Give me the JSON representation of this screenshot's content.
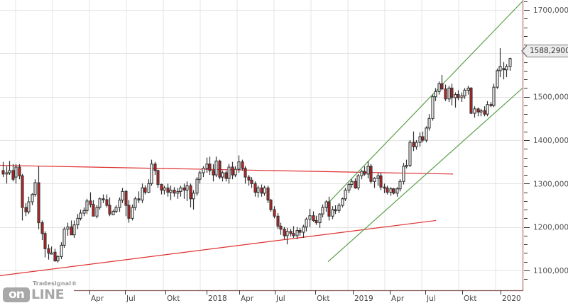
{
  "chart_data": {
    "type": "candlestick",
    "title": "",
    "instrument_last_price": "1588,2900",
    "ylim": [
      1075,
      1720
    ],
    "y_ticks": [
      "1100,0000",
      "1200,0000",
      "1300,0000",
      "1400,0000",
      "1500,0000",
      "1600,0000",
      "1700,0000"
    ],
    "y_tick_values": [
      1100,
      1200,
      1300,
      1400,
      1500,
      1600,
      1700
    ],
    "x_ticks": [
      {
        "label": "Apr",
        "x": 131
      },
      {
        "label": "Jul",
        "x": 181
      },
      {
        "label": "Okt",
        "x": 238
      },
      {
        "label": "2018",
        "x": 296
      },
      {
        "label": "Apr",
        "x": 342
      },
      {
        "label": "Jul",
        "x": 392
      },
      {
        "label": "Okt",
        "x": 449
      },
      {
        "label": "2019",
        "x": 502
      },
      {
        "label": "Apr",
        "x": 554
      },
      {
        "label": "Jul",
        "x": 604
      },
      {
        "label": "Okt",
        "x": 656
      },
      {
        "label": "2020",
        "x": 710
      }
    ],
    "grid": true,
    "colors": {
      "up": "#ffffff",
      "down": "#cc1f1f",
      "wick": "#333333",
      "trend_red": "#e03030",
      "trend_green": "#5aa04a",
      "grid": "#e4e4e4",
      "axis": "#c98a8a"
    },
    "trendlines": [
      {
        "name": "resistance",
        "color": "red",
        "from": [
          0,
          1342
        ],
        "to": [
          638,
          1322
        ]
      },
      {
        "name": "support",
        "color": "red",
        "from": [
          0,
          1088
        ],
        "to": [
          614,
          1215
        ]
      },
      {
        "name": "channel-upper",
        "color": "green",
        "from": [
          462,
          1255
        ],
        "to": [
          736,
          1720
        ]
      },
      {
        "name": "channel-lower",
        "color": "green",
        "from": [
          462,
          1120
        ],
        "to": [
          736,
          1520
        ]
      }
    ],
    "candles_ohlc": [
      [
        1330,
        1350,
        1315,
        1322
      ],
      [
        1322,
        1340,
        1300,
        1325
      ],
      [
        1325,
        1352,
        1320,
        1330
      ],
      [
        1330,
        1345,
        1305,
        1310
      ],
      [
        1315,
        1345,
        1300,
        1338
      ],
      [
        1338,
        1345,
        1310,
        1318
      ],
      [
        1318,
        1322,
        1215,
        1245
      ],
      [
        1245,
        1255,
        1225,
        1235
      ],
      [
        1235,
        1270,
        1230,
        1258
      ],
      [
        1258,
        1278,
        1250,
        1275
      ],
      [
        1275,
        1310,
        1270,
        1302
      ],
      [
        1302,
        1340,
        1195,
        1210
      ],
      [
        1210,
        1215,
        1170,
        1185
      ],
      [
        1185,
        1190,
        1130,
        1150
      ],
      [
        1150,
        1160,
        1125,
        1140
      ],
      [
        1140,
        1155,
        1140,
        1140
      ],
      [
        1142,
        1150,
        1120,
        1122
      ],
      [
        1122,
        1135,
        1118,
        1132
      ],
      [
        1132,
        1165,
        1126,
        1158
      ],
      [
        1158,
        1200,
        1152,
        1195
      ],
      [
        1195,
        1210,
        1180,
        1200
      ],
      [
        1200,
        1215,
        1190,
        1182
      ],
      [
        1182,
        1215,
        1175,
        1205
      ],
      [
        1205,
        1230,
        1195,
        1220
      ],
      [
        1220,
        1240,
        1215,
        1232
      ],
      [
        1232,
        1245,
        1225,
        1238
      ],
      [
        1238,
        1265,
        1230,
        1260
      ],
      [
        1260,
        1280,
        1245,
        1252
      ],
      [
        1252,
        1262,
        1225,
        1225
      ],
      [
        1225,
        1250,
        1220,
        1245
      ],
      [
        1245,
        1268,
        1240,
        1265
      ],
      [
        1265,
        1275,
        1255,
        1263
      ],
      [
        1263,
        1275,
        1245,
        1250
      ],
      [
        1250,
        1268,
        1225,
        1230
      ],
      [
        1228,
        1240,
        1230,
        1236
      ],
      [
        1236,
        1250,
        1232,
        1245
      ],
      [
        1245,
        1268,
        1235,
        1262
      ],
      [
        1262,
        1290,
        1255,
        1282
      ],
      [
        1282,
        1285,
        1225,
        1250
      ],
      [
        1250,
        1262,
        1210,
        1220
      ],
      [
        1220,
        1252,
        1215,
        1245
      ],
      [
        1245,
        1270,
        1238,
        1265
      ],
      [
        1265,
        1282,
        1255,
        1262
      ],
      [
        1262,
        1300,
        1255,
        1290
      ],
      [
        1290,
        1296,
        1275,
        1280
      ],
      [
        1280,
        1310,
        1278,
        1300
      ],
      [
        1300,
        1355,
        1295,
        1345
      ],
      [
        1345,
        1350,
        1320,
        1330
      ],
      [
        1330,
        1332,
        1290,
        1298
      ],
      [
        1298,
        1300,
        1275,
        1285
      ],
      [
        1285,
        1295,
        1275,
        1290
      ],
      [
        1290,
        1300,
        1270,
        1280
      ],
      [
        1280,
        1295,
        1262,
        1285
      ],
      [
        1285,
        1292,
        1270,
        1278
      ],
      [
        1278,
        1290,
        1265,
        1282
      ],
      [
        1282,
        1295,
        1270,
        1290
      ],
      [
        1290,
        1300,
        1265,
        1285
      ],
      [
        1285,
        1305,
        1260,
        1295
      ],
      [
        1295,
        1300,
        1245,
        1265
      ],
      [
        1265,
        1285,
        1240,
        1278
      ],
      [
        1278,
        1315,
        1272,
        1310
      ],
      [
        1310,
        1330,
        1300,
        1325
      ],
      [
        1325,
        1340,
        1315,
        1335
      ],
      [
        1335,
        1360,
        1325,
        1345
      ],
      [
        1345,
        1362,
        1320,
        1330
      ],
      [
        1330,
        1345,
        1305,
        1320
      ],
      [
        1320,
        1362,
        1315,
        1352
      ],
      [
        1352,
        1355,
        1310,
        1315
      ],
      [
        1315,
        1330,
        1305,
        1325
      ],
      [
        1325,
        1330,
        1305,
        1312
      ],
      [
        1312,
        1345,
        1300,
        1338
      ],
      [
        1338,
        1350,
        1310,
        1320
      ],
      [
        1320,
        1340,
        1315,
        1333
      ],
      [
        1333,
        1365,
        1325,
        1350
      ],
      [
        1350,
        1355,
        1330,
        1335
      ],
      [
        1335,
        1340,
        1300,
        1315
      ],
      [
        1315,
        1320,
        1295,
        1308
      ],
      [
        1308,
        1315,
        1290,
        1300
      ],
      [
        1300,
        1305,
        1270,
        1280
      ],
      [
        1280,
        1295,
        1268,
        1290
      ],
      [
        1290,
        1298,
        1270,
        1278
      ],
      [
        1278,
        1295,
        1272,
        1290
      ],
      [
        1290,
        1295,
        1255,
        1262
      ],
      [
        1262,
        1265,
        1235,
        1240
      ],
      [
        1240,
        1248,
        1220,
        1225
      ],
      [
        1225,
        1232,
        1195,
        1202
      ],
      [
        1202,
        1210,
        1182,
        1195
      ],
      [
        1195,
        1200,
        1172,
        1180
      ],
      [
        1180,
        1198,
        1160,
        1190
      ],
      [
        1190,
        1196,
        1178,
        1185
      ],
      [
        1185,
        1202,
        1175,
        1180
      ],
      [
        1180,
        1200,
        1172,
        1192
      ],
      [
        1192,
        1198,
        1180,
        1188
      ],
      [
        1188,
        1205,
        1175,
        1200
      ],
      [
        1200,
        1222,
        1190,
        1218
      ],
      [
        1218,
        1242,
        1200,
        1226
      ],
      [
        1226,
        1236,
        1212,
        1215
      ],
      [
        1215,
        1226,
        1205,
        1210
      ],
      [
        1210,
        1232,
        1198,
        1230
      ],
      [
        1230,
        1252,
        1222,
        1245
      ],
      [
        1245,
        1262,
        1235,
        1258
      ],
      [
        1258,
        1270,
        1215,
        1225
      ],
      [
        1225,
        1248,
        1218,
        1240
      ],
      [
        1240,
        1250,
        1230,
        1238
      ],
      [
        1238,
        1255,
        1232,
        1250
      ],
      [
        1250,
        1268,
        1245,
        1265
      ],
      [
        1265,
        1290,
        1260,
        1285
      ],
      [
        1285,
        1302,
        1278,
        1298
      ],
      [
        1298,
        1310,
        1290,
        1305
      ],
      [
        1305,
        1312,
        1288,
        1290
      ],
      [
        1290,
        1322,
        1285,
        1318
      ],
      [
        1318,
        1332,
        1310,
        1328
      ],
      [
        1328,
        1340,
        1318,
        1322
      ],
      [
        1322,
        1352,
        1312,
        1340
      ],
      [
        1340,
        1345,
        1300,
        1305
      ],
      [
        1305,
        1315,
        1290,
        1312
      ],
      [
        1312,
        1325,
        1295,
        1318
      ],
      [
        1318,
        1325,
        1285,
        1292
      ],
      [
        1292,
        1300,
        1278,
        1290
      ],
      [
        1290,
        1295,
        1275,
        1280
      ],
      [
        1280,
        1292,
        1272,
        1288
      ],
      [
        1288,
        1290,
        1275,
        1278
      ],
      [
        1278,
        1292,
        1270,
        1288
      ],
      [
        1288,
        1310,
        1282,
        1305
      ],
      [
        1305,
        1348,
        1298,
        1340
      ],
      [
        1340,
        1355,
        1335,
        1342
      ],
      [
        1342,
        1400,
        1338,
        1395
      ],
      [
        1395,
        1420,
        1375,
        1385
      ],
      [
        1385,
        1400,
        1378,
        1395
      ],
      [
        1395,
        1418,
        1385,
        1408
      ],
      [
        1408,
        1420,
        1395,
        1400
      ],
      [
        1400,
        1432,
        1395,
        1428
      ],
      [
        1428,
        1460,
        1422,
        1450
      ],
      [
        1450,
        1505,
        1445,
        1500
      ],
      [
        1500,
        1520,
        1490,
        1512
      ],
      [
        1512,
        1535,
        1505,
        1530
      ],
      [
        1530,
        1550,
        1515,
        1518
      ],
      [
        1518,
        1528,
        1490,
        1495
      ],
      [
        1495,
        1525,
        1488,
        1520
      ],
      [
        1520,
        1530,
        1480,
        1498
      ],
      [
        1498,
        1510,
        1475,
        1505
      ],
      [
        1505,
        1515,
        1492,
        1498
      ],
      [
        1498,
        1510,
        1488,
        1502
      ],
      [
        1502,
        1520,
        1495,
        1515
      ],
      [
        1515,
        1525,
        1505,
        1520
      ],
      [
        1520,
        1522,
        1460,
        1462
      ],
      [
        1462,
        1478,
        1452,
        1472
      ],
      [
        1472,
        1475,
        1455,
        1465
      ],
      [
        1465,
        1472,
        1455,
        1468
      ],
      [
        1468,
        1478,
        1455,
        1460
      ],
      [
        1460,
        1490,
        1455,
        1482
      ],
      [
        1482,
        1488,
        1476,
        1480
      ],
      [
        1480,
        1530,
        1476,
        1522
      ],
      [
        1522,
        1565,
        1518,
        1560
      ],
      [
        1560,
        1612,
        1545,
        1570
      ],
      [
        1565,
        1580,
        1540,
        1562
      ],
      [
        1562,
        1575,
        1545,
        1570
      ],
      [
        1570,
        1590,
        1560,
        1588
      ]
    ]
  },
  "price_axis": {
    "labels": [
      "1700,0000",
      "1600,0000",
      "1500,0000",
      "1400,0000",
      "1300,0000",
      "1200,0000",
      "1100,0000"
    ],
    "last_price_tag": "1588,2900"
  },
  "time_axis": {
    "labels": [
      "Apr",
      "Jul",
      "Okt",
      "2018",
      "Apr",
      "Jul",
      "Okt",
      "2019",
      "Apr",
      "Jul",
      "Okt",
      "2020"
    ]
  },
  "branding": {
    "logo_small": "Tradesignal®",
    "logo_on": "on",
    "logo_line": "LINE"
  }
}
